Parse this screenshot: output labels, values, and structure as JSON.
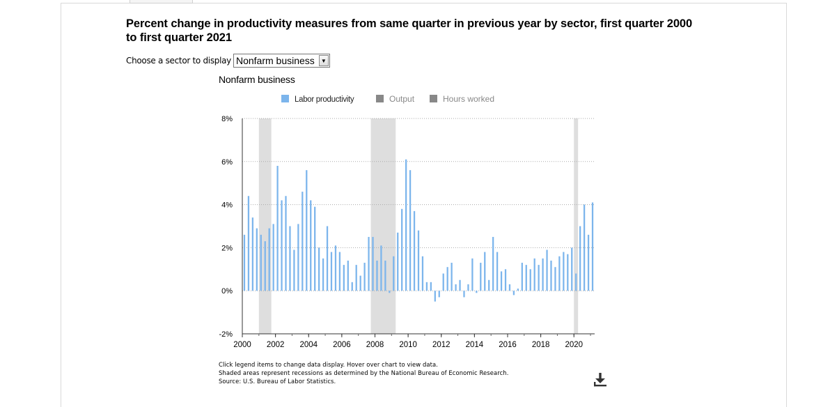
{
  "title": "Percent change in productivity measures from same quarter in previous year by sector, first quarter 2000 to first quarter 2021",
  "chooser": {
    "label": "Choose a sector to display",
    "selected": "Nonfarm business"
  },
  "notes": [
    "Click legend items to change data display. Hover over chart to view data.",
    "Shaded areas represent recessions as determined by the National Bureau of Economic Research.",
    "Source: U.S. Bureau of Labor Statistics."
  ],
  "icons": {
    "download": "download-icon",
    "dropdown": "chevron-down-icon"
  },
  "chart_data": {
    "type": "bar",
    "title": "Nonfarm business",
    "x_unit": "quarter",
    "x_start": "2000Q1",
    "x_end": "2021Q1",
    "xlim": [
      2000,
      2021.25
    ],
    "ylim": [
      -2,
      8
    ],
    "y_ticks": [
      -2,
      0,
      2,
      4,
      6,
      8
    ],
    "y_tick_labels": [
      "-2%",
      "0%",
      "2%",
      "4%",
      "6%",
      "8%"
    ],
    "x_ticks": [
      2000,
      2002,
      2004,
      2006,
      2008,
      2010,
      2012,
      2014,
      2016,
      2018,
      2020
    ],
    "x_tick_labels": [
      "2000",
      "2002",
      "2004",
      "2006",
      "2008",
      "2010",
      "2012",
      "2014",
      "2016",
      "2018",
      "2020"
    ],
    "grid": "horizontal dotted",
    "legend": {
      "placement": "top",
      "items": [
        {
          "name": "Labor productivity",
          "color": "#7cb5ec",
          "active": true
        },
        {
          "name": "Output",
          "color": "#888888",
          "active": false
        },
        {
          "name": "Hours worked",
          "color": "#888888",
          "active": false
        }
      ]
    },
    "recessions": [
      {
        "start": 2001.0,
        "end": 2001.75
      },
      {
        "start": 2007.75,
        "end": 2009.25
      },
      {
        "start": 2020.0,
        "end": 2020.25
      }
    ],
    "series": [
      {
        "name": "Labor productivity",
        "color": "#7cb5ec",
        "values": [
          2.6,
          4.4,
          3.4,
          2.9,
          2.6,
          2.3,
          2.9,
          3.1,
          5.8,
          4.2,
          4.4,
          3.0,
          1.9,
          3.1,
          4.6,
          5.6,
          4.2,
          3.9,
          2.0,
          1.5,
          3.0,
          1.8,
          2.1,
          1.8,
          1.2,
          1.4,
          0.4,
          1.2,
          0.7,
          1.3,
          2.5,
          2.5,
          1.4,
          2.1,
          1.4,
          -0.1,
          1.6,
          2.7,
          3.8,
          6.1,
          5.6,
          3.7,
          2.8,
          1.6,
          0.4,
          0.4,
          -0.5,
          -0.3,
          0.8,
          1.1,
          1.3,
          0.3,
          0.5,
          -0.3,
          0.3,
          1.5,
          -0.1,
          1.3,
          1.8,
          0.5,
          2.5,
          1.8,
          0.9,
          1.0,
          0.3,
          -0.2,
          0.1,
          1.3,
          1.2,
          1.0,
          1.5,
          1.2,
          1.5,
          1.9,
          1.4,
          1.1,
          1.6,
          1.8,
          1.7,
          2.0,
          0.8,
          3.0,
          4.0,
          2.6,
          4.1
        ]
      }
    ]
  }
}
